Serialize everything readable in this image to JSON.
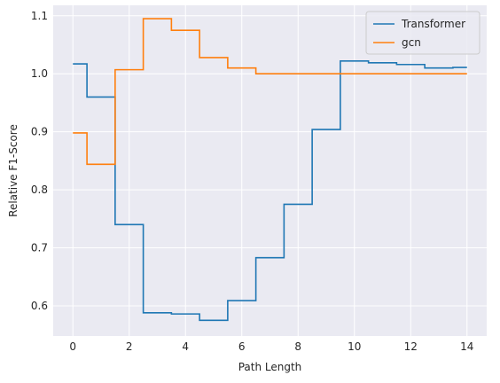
{
  "chart_data": {
    "type": "line",
    "step": "mid",
    "xlabel": "Path Length",
    "ylabel": "Relative F1-Score",
    "xlim": [
      -0.7,
      14.7
    ],
    "ylim": [
      0.548,
      1.118
    ],
    "xticks": [
      0,
      2,
      4,
      6,
      8,
      10,
      12,
      14
    ],
    "yticks": [
      0.6,
      0.7,
      0.8,
      0.9,
      1.0,
      1.1
    ],
    "ytick_labels": [
      "0.6",
      "0.7",
      "0.8",
      "0.9",
      "1.0",
      "1.1"
    ],
    "grid": true,
    "legend_position": "top-right",
    "x": [
      0,
      1,
      2,
      3,
      4,
      5,
      6,
      7,
      8,
      9,
      10,
      11,
      12,
      13,
      14
    ],
    "series": [
      {
        "name": "Transformer",
        "color": "#1f77b4",
        "values": [
          1.017,
          0.96,
          0.74,
          0.588,
          0.586,
          0.575,
          0.609,
          0.683,
          0.775,
          0.904,
          1.022,
          1.019,
          1.016,
          1.01,
          1.011
        ]
      },
      {
        "name": "gcn",
        "color": "#ff7f0e",
        "values": [
          0.898,
          0.844,
          1.007,
          1.095,
          1.075,
          1.028,
          1.01,
          1.0,
          1.0,
          1.0,
          1.0,
          1.0,
          1.0,
          1.0,
          1.0
        ]
      }
    ]
  },
  "style": {
    "plot_background": "#eaeaf2",
    "grid_color": "#ffffff",
    "text_color": "#262626"
  }
}
